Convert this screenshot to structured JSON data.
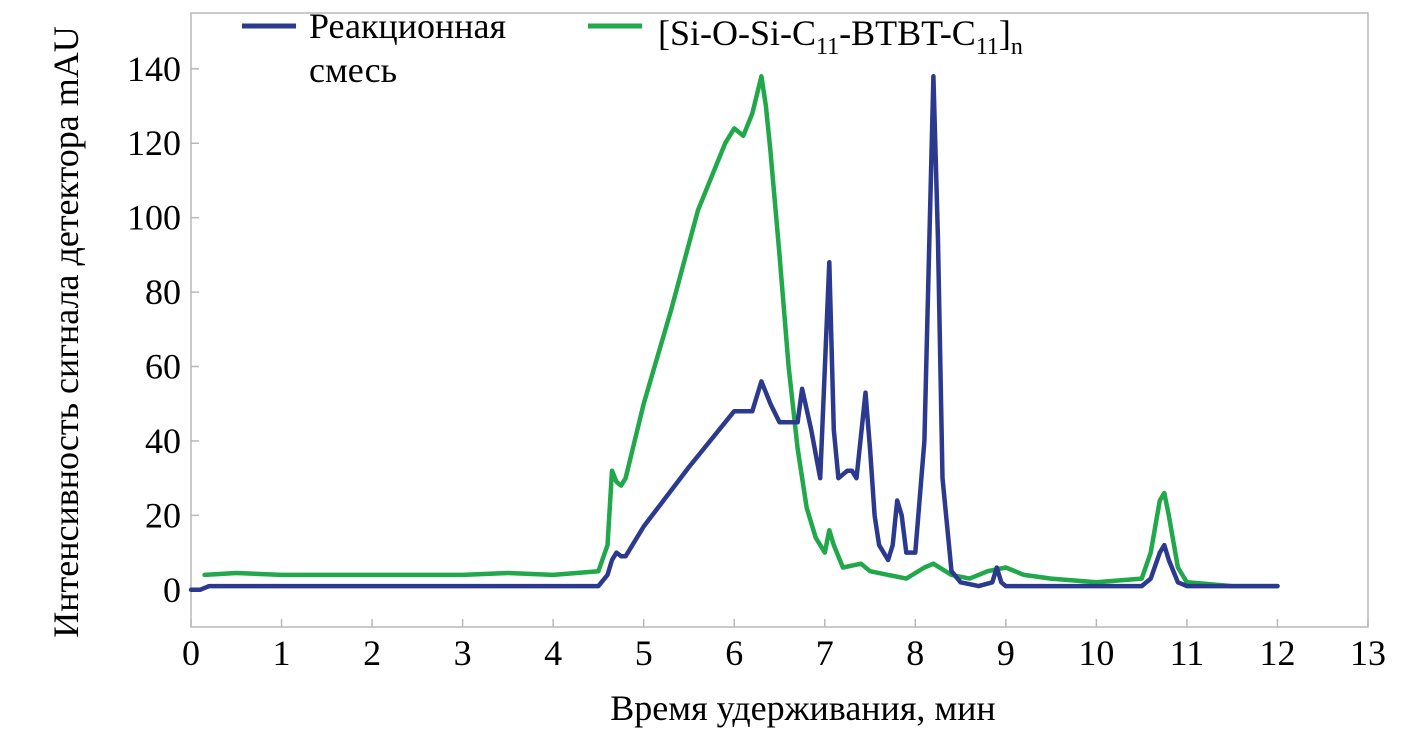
{
  "chart_data": {
    "type": "line",
    "xlabel": "Время удерживания, мин",
    "ylabel": "Интенсивность сигнала детектора mAU",
    "xlim": [
      0,
      13
    ],
    "ylim": [
      -10,
      155
    ],
    "x_ticks": [
      "0",
      "1",
      "2",
      "3",
      "4",
      "5",
      "6",
      "7",
      "8",
      "9",
      "10",
      "11",
      "12",
      "13"
    ],
    "y_ticks": [
      "0",
      "20",
      "40",
      "60",
      "80",
      "100",
      "120",
      "140"
    ],
    "grid": false,
    "legend_position": "top",
    "series": [
      {
        "name": "Реакционная смесь",
        "color": "#2b3a8f",
        "x": [
          0.0,
          0.1,
          0.2,
          1,
          2,
          3,
          4,
          4.5,
          4.6,
          4.65,
          4.7,
          4.75,
          4.8,
          5.0,
          5.5,
          6.0,
          6.2,
          6.3,
          6.4,
          6.5,
          6.7,
          6.75,
          6.85,
          6.95,
          7.05,
          7.1,
          7.15,
          7.25,
          7.3,
          7.35,
          7.45,
          7.5,
          7.55,
          7.6,
          7.7,
          7.75,
          7.8,
          7.85,
          7.9,
          8.0,
          8.1,
          8.2,
          8.25,
          8.3,
          8.4,
          8.5,
          8.7,
          8.85,
          8.9,
          8.95,
          9.0,
          9.5,
          10,
          10.5,
          10.6,
          10.7,
          10.75,
          10.8,
          10.9,
          11,
          11.5,
          12.0
        ],
        "y": [
          0,
          0,
          1,
          1,
          1,
          1,
          1,
          1,
          4,
          8,
          10,
          9,
          9,
          17,
          33,
          48,
          48,
          56,
          50,
          45,
          45,
          54,
          43,
          30,
          88,
          43,
          30,
          32,
          32,
          30,
          53,
          38,
          20,
          12,
          8,
          12,
          24,
          20,
          10,
          10,
          40,
          138,
          95,
          30,
          5,
          2,
          1,
          2,
          6,
          2,
          1,
          1,
          1,
          1,
          3,
          10,
          12,
          8,
          2,
          1,
          1,
          1
        ]
      },
      {
        "name": "[Si-O-Si-C11-BTBT-C11]n",
        "name_parts": [
          "[Si-O-Si-C",
          "11",
          "-BTBT-C",
          "11",
          "]",
          "n"
        ],
        "color": "#20a84a",
        "x": [
          0.15,
          0.5,
          1,
          1.5,
          2,
          2.5,
          3,
          3.5,
          4,
          4.5,
          4.6,
          4.65,
          4.7,
          4.75,
          4.8,
          5.0,
          5.3,
          5.6,
          5.9,
          6.0,
          6.1,
          6.2,
          6.3,
          6.35,
          6.4,
          6.5,
          6.6,
          6.7,
          6.8,
          6.9,
          7.0,
          7.05,
          7.1,
          7.2,
          7.4,
          7.5,
          7.7,
          7.9,
          8.1,
          8.2,
          8.4,
          8.6,
          8.8,
          9.0,
          9.2,
          9.5,
          10,
          10.5,
          10.6,
          10.7,
          10.75,
          10.8,
          10.9,
          11,
          11.5,
          12.0
        ],
        "y": [
          4,
          4.5,
          4,
          4,
          4,
          4,
          4,
          4.5,
          4,
          5,
          12,
          32,
          29,
          28,
          30,
          50,
          75,
          102,
          120,
          124,
          122,
          128,
          138,
          130,
          118,
          90,
          60,
          38,
          22,
          14,
          10,
          16,
          12,
          6,
          7,
          5,
          4,
          3,
          6,
          7,
          4,
          3,
          5,
          6,
          4,
          3,
          2,
          3,
          10,
          24,
          26,
          20,
          6,
          2,
          1,
          1
        ]
      }
    ]
  }
}
